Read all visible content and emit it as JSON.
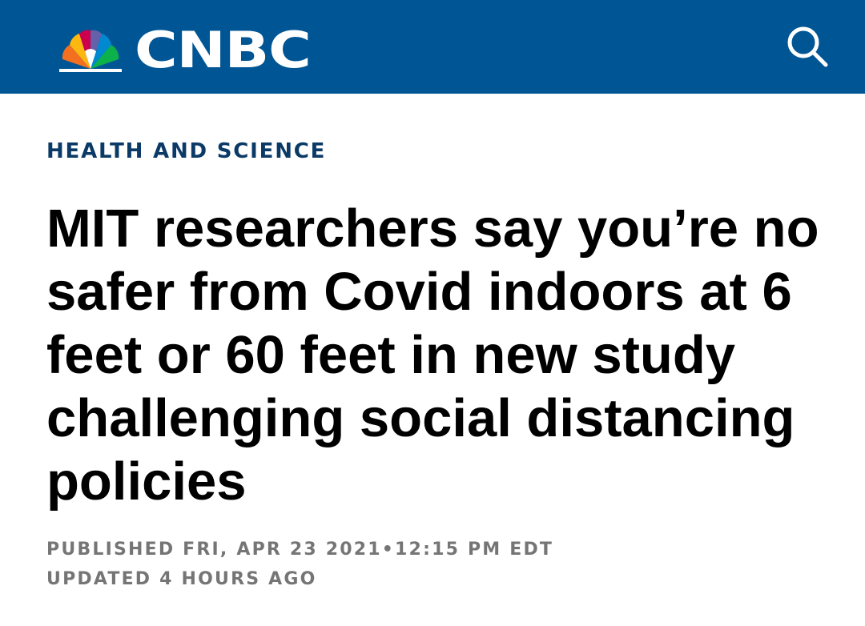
{
  "header": {
    "logo_text": "CNBC",
    "search_icon": "search-icon",
    "background_color": "#005594"
  },
  "article": {
    "section": "HEALTH AND SCIENCE",
    "headline": "MIT researchers say you’re no safer from Covid indoors at 6 feet or 60 feet in new study challenging social distancing policies",
    "published": "PUBLISHED FRI, APR 23 2021•12:15 PM EDT",
    "updated": "UPDATED 4 HOURS AGO"
  },
  "colors": {
    "section_label": "#0b3a66",
    "headline": "#000000",
    "meta": "#757575"
  }
}
